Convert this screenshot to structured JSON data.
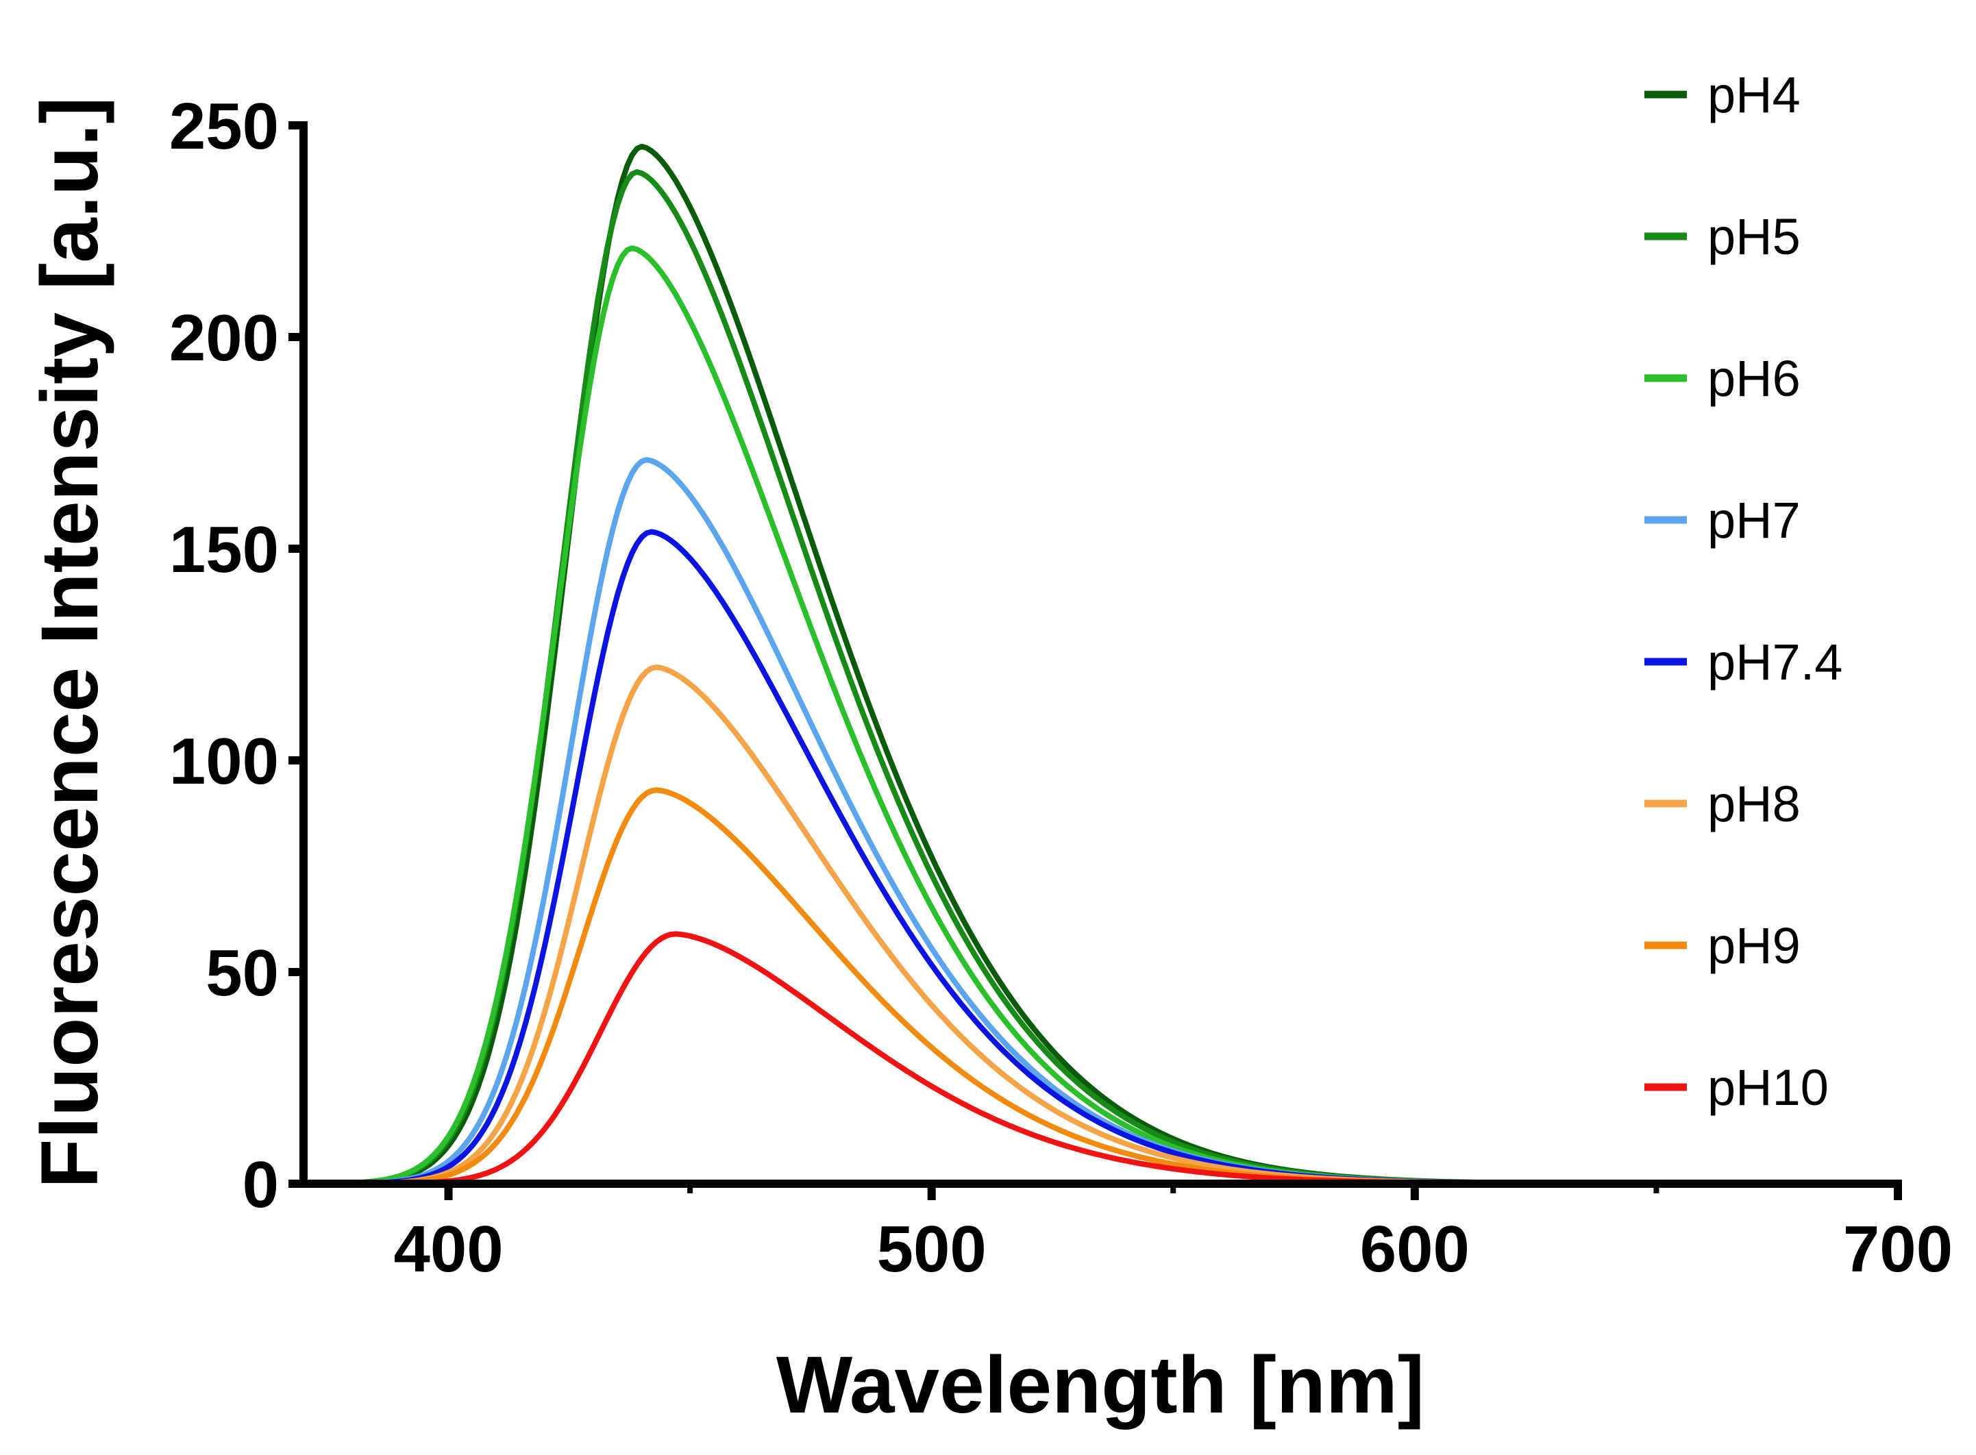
{
  "chart_data": {
    "type": "line",
    "title": "",
    "xlabel": "Wavelength [nm]",
    "ylabel": "Fluorescence Intensity [a.u.]",
    "xlim": [
      370,
      700
    ],
    "ylim": [
      0,
      250
    ],
    "xticks": [
      400,
      500,
      600,
      700
    ],
    "xticks_minor": [
      450,
      550,
      650
    ],
    "yticks": [
      0,
      50,
      100,
      150,
      200,
      250
    ],
    "grid": false,
    "legend_position": "right",
    "series": [
      {
        "name": "pH4",
        "color": "#0a5c0a",
        "peak": 245,
        "peak_x": 440
      },
      {
        "name": "pH5",
        "color": "#178a17",
        "peak": 239,
        "peak_x": 439
      },
      {
        "name": "pH6",
        "color": "#2bbf2b",
        "peak": 221,
        "peak_x": 438
      },
      {
        "name": "pH7",
        "color": "#5aa5ee",
        "peak": 171,
        "peak_x": 441
      },
      {
        "name": "pH7.4",
        "color": "#0b14e0",
        "peak": 154,
        "peak_x": 442
      },
      {
        "name": "pH8",
        "color": "#f5a347",
        "peak": 122,
        "peak_x": 443
      },
      {
        "name": "pH9",
        "color": "#f28a10",
        "peak": 93,
        "peak_x": 443
      },
      {
        "name": "pH10",
        "color": "#f01313",
        "peak": 59,
        "peak_x": 447
      }
    ]
  }
}
